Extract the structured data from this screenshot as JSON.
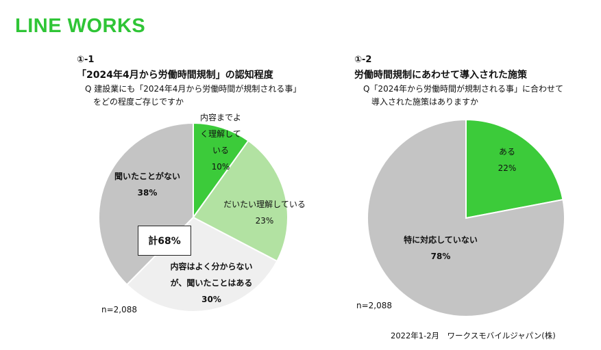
{
  "logo": "LINE WORKS",
  "left": {
    "number": "①-1",
    "title": "「2024年4月から労働時間規制」の認知程度",
    "question_line1": "Q 建設業にも「2024年4月から労働時間が規制される事」",
    "question_line2": "をどの程度ご存じですか",
    "n": "n=2,088",
    "total_box": "計68%"
  },
  "right": {
    "number": "①-2",
    "title": "労働時間規制にあわせて導入された施策",
    "question_line1": "Q「2024年から労働時間が規制される事」に合わせて",
    "question_line2": "導入された施策はありますか",
    "n": "n=2,088"
  },
  "source": "2022年1-2月　ワークスモバイルジャパン(株)",
  "chart_data": [
    {
      "type": "pie",
      "slices": [
        {
          "label_lines": [
            "内容までよ",
            "く理解して",
            "いる"
          ],
          "value": 10,
          "display": "10%",
          "color": "#3ccb3a"
        },
        {
          "label_lines": [
            "だいたい理解している"
          ],
          "value": 23,
          "display": "23%",
          "color": "#b2e2a2"
        },
        {
          "label_lines": [
            "内容はよく分からない",
            "が、聞いたことはある"
          ],
          "value": 30,
          "display": "30%",
          "color": "#efefef"
        },
        {
          "label_lines": [
            "聞いたことがない"
          ],
          "value": 38,
          "display": "38%",
          "color": "#c4c4c4"
        }
      ]
    },
    {
      "type": "pie",
      "slices": [
        {
          "label_lines": [
            "ある"
          ],
          "value": 22,
          "display": "22%",
          "color": "#3ccb3a"
        },
        {
          "label_lines": [
            "特に対応していない"
          ],
          "value": 78,
          "display": "78%",
          "color": "#c4c4c4"
        }
      ]
    }
  ]
}
